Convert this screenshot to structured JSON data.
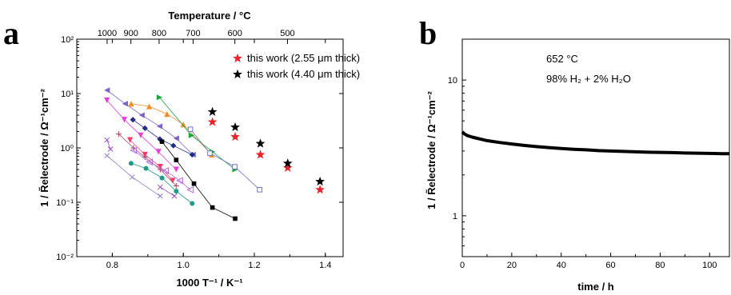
{
  "panels": {
    "a": {
      "letter": "a"
    },
    "b": {
      "letter": "b"
    }
  },
  "chart_data": [
    {
      "type": "scatter",
      "panel": "a",
      "title": "",
      "xlabel": "1000 T⁻¹ / K⁻¹",
      "ylabel": "1 / R̃electrode / Ω⁻¹cm⁻²",
      "top_xlabel": "Temperature / °C",
      "xlim": [
        0.7,
        1.45
      ],
      "ylim": [
        0.01,
        100
      ],
      "log_y": true,
      "xticks": [
        "0.8",
        "1.0",
        "1.2",
        "1.4"
      ],
      "yticks": [
        "10⁻²",
        "10⁻¹",
        "10⁰",
        "10¹",
        "10²"
      ],
      "top_ticks": [
        "1000",
        "900",
        "800",
        "700",
        "600",
        "500"
      ],
      "legend": [
        {
          "label": "this work (2.55 μm thick)",
          "color": "#e8242b"
        },
        {
          "label": "this work (4.40 μm thick)",
          "color": "#000000"
        }
      ],
      "series": [
        {
          "name": "this work (2.55 μm thick)",
          "marker": "star",
          "color": "#e8242b",
          "x": [
            1.082,
            1.146,
            1.217,
            1.294,
            1.385
          ],
          "y": [
            3.0,
            1.6,
            0.75,
            0.43,
            0.17
          ]
        },
        {
          "name": "this work (4.40 μm thick)",
          "marker": "star",
          "color": "#000000",
          "x": [
            1.082,
            1.146,
            1.217,
            1.294,
            1.385
          ],
          "y": [
            4.6,
            2.4,
            1.2,
            0.52,
            0.24
          ]
        },
        {
          "marker": "tri-left",
          "color": "#7b62c8",
          "x": [
            0.785,
            0.836,
            0.883,
            0.933,
            0.98,
            1.027
          ],
          "y": [
            11.5,
            6.5,
            4.0,
            2.5,
            1.5,
            0.75
          ]
        },
        {
          "marker": "tri-down",
          "color": "#e63ed6",
          "x": [
            0.785,
            0.834,
            0.88,
            0.93,
            0.98
          ],
          "y": [
            7.5,
            3.3,
            1.7,
            0.85,
            0.4
          ]
        },
        {
          "marker": "tri-up",
          "color": "#f28e2b",
          "x": [
            0.853,
            0.904,
            0.954,
            1.0,
            1.08
          ],
          "y": [
            6.5,
            5.8,
            4.2,
            2.7,
            0.75
          ]
        },
        {
          "marker": "diamond",
          "color": "#1f2e8a",
          "x": [
            0.858,
            0.892,
            0.934,
            0.972,
            1.025
          ],
          "y": [
            3.3,
            2.3,
            1.45,
            1.1,
            0.75
          ]
        },
        {
          "marker": "tri-right",
          "color": "#18a83a",
          "x": [
            0.933,
            1.023,
            1.082,
            1.146
          ],
          "y": [
            8.5,
            1.7,
            0.85,
            0.4
          ]
        },
        {
          "marker": "tri-down",
          "color": "#ff3b6b",
          "x": [
            0.85,
            0.892,
            0.935,
            0.97
          ],
          "y": [
            1.4,
            0.75,
            0.45,
            0.25
          ]
        },
        {
          "marker": "square",
          "color": "#000000",
          "x": [
            0.94,
            0.98,
            1.03,
            1.082,
            1.146
          ],
          "y": [
            1.3,
            0.6,
            0.22,
            0.08,
            0.05
          ]
        },
        {
          "marker": "open-square",
          "color": "#6f74c6",
          "x": [
            1.02,
            1.075,
            1.145,
            1.215
          ],
          "y": [
            2.2,
            0.8,
            0.45,
            0.17
          ]
        },
        {
          "marker": "plus",
          "color": "#a44a6c",
          "x": [
            0.818,
            0.86,
            0.892,
            0.935,
            0.98
          ],
          "y": [
            1.8,
            1.0,
            0.68,
            0.4,
            0.2
          ]
        },
        {
          "marker": "open-tri-left",
          "color": "#b36ad8",
          "x": [
            0.86,
            0.905,
            0.95,
            0.99,
            1.02
          ],
          "y": [
            0.9,
            0.55,
            0.38,
            0.25,
            0.17
          ]
        },
        {
          "marker": "circle",
          "color": "#1f9a8a",
          "x": [
            0.853,
            0.895,
            0.94,
            0.98,
            1.025
          ],
          "y": [
            0.52,
            0.42,
            0.28,
            0.16,
            0.095
          ]
        },
        {
          "marker": "x",
          "color": "#8f79c9",
          "x": [
            0.785,
            0.856,
            0.935
          ],
          "y": [
            0.72,
            0.29,
            0.13
          ]
        },
        {
          "marker": "x",
          "color": "#9a4bc0",
          "x": [
            0.785,
            0.795
          ],
          "y": [
            1.4,
            0.95
          ]
        },
        {
          "marker": "x",
          "color": "#9a4bc0",
          "x": [
            0.935,
            0.975
          ],
          "y": [
            0.19,
            0.13
          ]
        }
      ]
    },
    {
      "type": "line",
      "panel": "b",
      "title": "",
      "xlabel": "time  /  h",
      "ylabel": "1 / R̃electrode  /  Ω⁻¹cm⁻²",
      "xlim": [
        0,
        108
      ],
      "ylim": [
        0.5,
        20
      ],
      "log_y": true,
      "xticks": [
        "0",
        "20",
        "40",
        "60",
        "80",
        "100"
      ],
      "yticks": [
        "1",
        "10"
      ],
      "annotations": [
        "652 °C",
        "98% H₂ + 2% H₂O"
      ],
      "series": [
        {
          "color": "#000000",
          "x": [
            0,
            1,
            2,
            4,
            6,
            8,
            10,
            15,
            20,
            25,
            30,
            35,
            40,
            45,
            50,
            55,
            60,
            65,
            70,
            75,
            80,
            85,
            90,
            95,
            100,
            105,
            108
          ],
          "y": [
            4.15,
            4.0,
            3.9,
            3.8,
            3.72,
            3.65,
            3.58,
            3.47,
            3.38,
            3.3,
            3.23,
            3.18,
            3.13,
            3.09,
            3.06,
            3.02,
            3.0,
            2.98,
            2.96,
            2.94,
            2.93,
            2.92,
            2.9,
            2.89,
            2.88,
            2.87,
            2.87
          ]
        }
      ]
    }
  ]
}
